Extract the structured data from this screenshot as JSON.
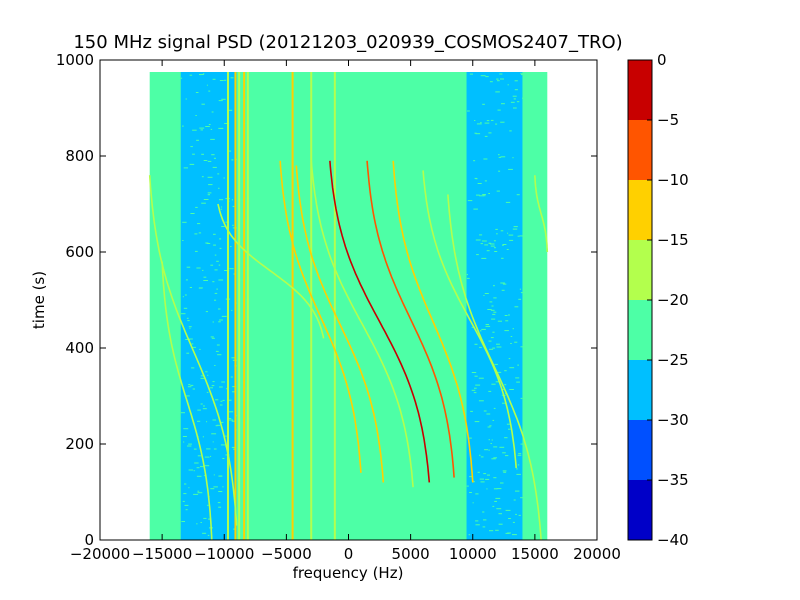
{
  "chart_data": {
    "type": "heatmap",
    "title": "150 MHz signal PSD (20121203_020939_COSMOS2407_TRO)",
    "xlabel": "frequency (Hz)",
    "ylabel": "time (s)",
    "xlim": [
      -20000,
      20000
    ],
    "ylim": [
      0,
      1000
    ],
    "x_ticks": [
      "−20000",
      "−15000",
      "−10000",
      "−5000",
      "0",
      "5000",
      "10000",
      "15000",
      "20000"
    ],
    "y_ticks": [
      "0",
      "200",
      "400",
      "600",
      "800",
      "1000"
    ],
    "data_extent": {
      "freq_min": -16000,
      "freq_max": 16000,
      "time_min": 0,
      "time_max": 975
    },
    "background_level_db": -22.5,
    "noise_bands": [
      {
        "freq_from": -13500,
        "freq_to": -9000,
        "level_db": -27
      },
      {
        "freq_from": 9500,
        "freq_to": 14000,
        "level_db": -26
      }
    ],
    "vertical_lines": [
      {
        "freq": -9700,
        "level_db": -17,
        "time_from": 0,
        "time_to": 975
      },
      {
        "freq": -9100,
        "level_db": -14,
        "time_from": 0,
        "time_to": 975
      },
      {
        "freq": -8800,
        "level_db": -17,
        "time_from": 0,
        "time_to": 975
      },
      {
        "freq": -8400,
        "level_db": -14,
        "time_from": 0,
        "time_to": 975
      },
      {
        "freq": -8100,
        "level_db": -17,
        "time_from": 0,
        "time_to": 975
      },
      {
        "freq": -4500,
        "level_db": -14,
        "time_from": 0,
        "time_to": 975
      },
      {
        "freq": -3000,
        "level_db": -16,
        "time_from": 0,
        "time_to": 975
      },
      {
        "freq": -1100,
        "level_db": -17,
        "time_from": 0,
        "time_to": 975
      }
    ],
    "doppler_tracks": [
      {
        "start_freq": -16000,
        "end_freq": -9000,
        "time_from": 30,
        "time_to": 760,
        "level_db": -17
      },
      {
        "start_freq": -15000,
        "end_freq": -11000,
        "time_from": 0,
        "time_to": 580,
        "level_db": -19
      },
      {
        "start_freq": -10500,
        "end_freq": -2000,
        "time_from": 420,
        "time_to": 700,
        "level_db": -17
      },
      {
        "start_freq": -5500,
        "end_freq": 1000,
        "time_from": 140,
        "time_to": 790,
        "level_db": -14
      },
      {
        "start_freq": -4200,
        "end_freq": 2800,
        "time_from": 120,
        "time_to": 780,
        "level_db": -12
      },
      {
        "start_freq": -3000,
        "end_freq": 5200,
        "time_from": 110,
        "time_to": 790,
        "level_db": -16
      },
      {
        "start_freq": -1500,
        "end_freq": 6500,
        "time_from": 120,
        "time_to": 790,
        "level_db": -3
      },
      {
        "start_freq": 1500,
        "end_freq": 8500,
        "time_from": 130,
        "time_to": 790,
        "level_db": -9
      },
      {
        "start_freq": 3600,
        "end_freq": 10000,
        "time_from": 120,
        "time_to": 790,
        "level_db": -12
      },
      {
        "start_freq": 6000,
        "end_freq": 13500,
        "time_from": 150,
        "time_to": 770,
        "level_db": -17
      },
      {
        "start_freq": 8000,
        "end_freq": 15500,
        "time_from": 0,
        "time_to": 720,
        "level_db": -16
      },
      {
        "start_freq": 15000,
        "end_freq": 16000,
        "time_from": 600,
        "time_to": 760,
        "level_db": -17
      }
    ],
    "colorbar": {
      "min": -40,
      "max": 0,
      "ticks": [
        "0",
        "−5",
        "−10",
        "−15",
        "−20",
        "−25",
        "−30",
        "−35",
        "−40"
      ],
      "levels": [
        {
          "from": -40,
          "to": -35,
          "color": "#0000c8"
        },
        {
          "from": -35,
          "to": -30,
          "color": "#0050ff"
        },
        {
          "from": -30,
          "to": -25,
          "color": "#00bfff"
        },
        {
          "from": -25,
          "to": -20,
          "color": "#4dffa6"
        },
        {
          "from": -20,
          "to": -15,
          "color": "#b3ff4d"
        },
        {
          "from": -15,
          "to": -10,
          "color": "#ffd000"
        },
        {
          "from": -10,
          "to": -5,
          "color": "#ff5500"
        },
        {
          "from": -5,
          "to": 0,
          "color": "#c80000"
        }
      ]
    }
  }
}
